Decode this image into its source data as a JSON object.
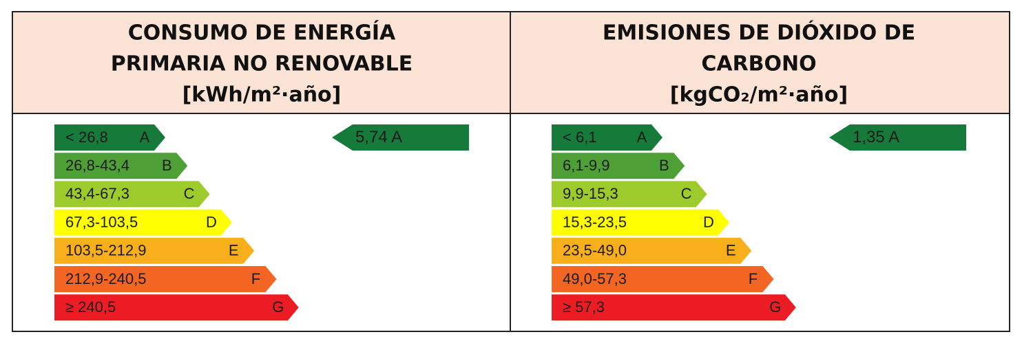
{
  "panels": [
    {
      "title": [
        "CONSUMO DE ENERGÍA",
        "PRIMARIA NO RENOVABLE"
      ],
      "unit": "[kWh/m²·año]",
      "rows": [
        {
          "range": "< 26,8",
          "class": "A"
        },
        {
          "range": "26,8-43,4",
          "class": "B"
        },
        {
          "range": "43,4-67,3",
          "class": "C"
        },
        {
          "range": "67,3-103,5",
          "class": "D"
        },
        {
          "range": "103,5-212,9",
          "class": "E"
        },
        {
          "range": "212,9-240,5",
          "class": "F"
        },
        {
          "range": "≥ 240,5",
          "class": "G"
        }
      ],
      "indicator": {
        "value": "5,74",
        "class": "A"
      }
    },
    {
      "title": [
        "EMISIONES DE DIÓXIDO DE",
        "CARBONO"
      ],
      "unit": "[kgCO₂/m²·año]",
      "rows": [
        {
          "range": "< 6,1",
          "class": "A"
        },
        {
          "range": "6,1-9,9",
          "class": "B"
        },
        {
          "range": "9,9-15,3",
          "class": "C"
        },
        {
          "range": "15,3-23,5",
          "class": "D"
        },
        {
          "range": "23,5-49,0",
          "class": "E"
        },
        {
          "range": "49,0-57,3",
          "class": "F"
        },
        {
          "range": "≥ 57,3",
          "class": "G"
        }
      ],
      "indicator": {
        "value": "1,35",
        "class": "A"
      }
    }
  ]
}
